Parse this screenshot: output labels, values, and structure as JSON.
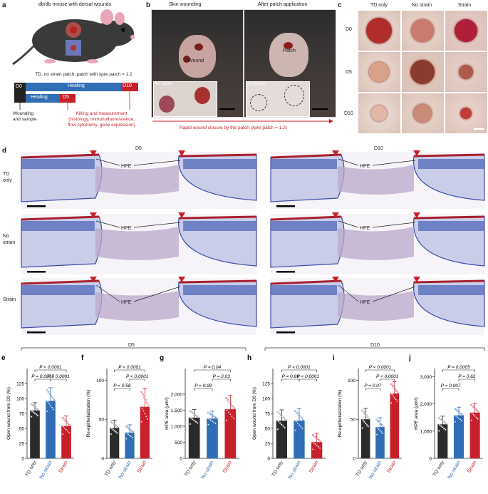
{
  "panel_letters": {
    "a": "a",
    "b": "b",
    "c": "c",
    "d": "d",
    "e": "e",
    "f": "f",
    "g": "g",
    "h": "h",
    "i": "i",
    "j": "j"
  },
  "panel_a": {
    "title": "db/db mouse with dorsal wounds",
    "subtitle": "TD, no strain patch, patch with λpre patch = 1.2",
    "d0": "D0",
    "healing1": "Healing",
    "healing2": "Healing",
    "d5": "D5",
    "d10": "D10",
    "wounding": "Wounding",
    "and_sample": "and sample",
    "killing": "Killing and measurement",
    "methods1": "(histology, immunofluorescence,",
    "methods2": "flow cytometry, gene expression)"
  },
  "panel_b": {
    "title_left": "Skin wounding",
    "title_right": "After patch application",
    "wound": "Wound",
    "patch": "Patch",
    "zoom_left": "4X zoom",
    "zoom_right": "4X zoom",
    "caption": "Rapid wound closure by the patch (λpre patch = 1.2)"
  },
  "panel_c": {
    "cols": [
      "TD only",
      "No strain",
      "Strain"
    ],
    "rows": [
      "D0",
      "D5",
      "D10"
    ]
  },
  "panel_d": {
    "d5": "D5",
    "d10": "D10",
    "row1a": "TD",
    "row1b": "only",
    "row2a": "No",
    "row2b": "strain",
    "row3": "Strain",
    "hpe": "HPE"
  },
  "group_labels": {
    "d5": "D5",
    "d10": "D10"
  },
  "chart_data": [
    {
      "id": "e",
      "type": "bar",
      "categories": [
        "TD only",
        "No strain",
        "Strain"
      ],
      "values": [
        80,
        96,
        54
      ],
      "errors": [
        13,
        22,
        17
      ],
      "ylabel": "Open wound from D0 (%)",
      "ylim": [
        0,
        150
      ],
      "yticks": [
        0,
        25,
        50,
        75,
        100,
        125
      ],
      "pvals": [
        {
          "text": "P < 0.0001",
          "from": 0,
          "to": 2,
          "level": 2
        },
        {
          "text": "P = 0.0015",
          "from": 0,
          "to": 1,
          "level": 1
        },
        {
          "text": "P < 0.0001",
          "from": 1,
          "to": 2,
          "level": 1
        }
      ]
    },
    {
      "id": "f",
      "type": "bar",
      "categories": [
        "TD only",
        "No strain",
        "Strain"
      ],
      "values": [
        39,
        33,
        66
      ],
      "errors": [
        10,
        10,
        24
      ],
      "ylabel": "Re-epithelialization (%)",
      "ylim": [
        0,
        115
      ],
      "yticks": [
        0,
        50,
        100
      ],
      "pvals": [
        {
          "text": "P < 0.0001",
          "from": 0,
          "to": 2,
          "level": 2
        },
        {
          "text": "P < 0.0001",
          "from": 1,
          "to": 2,
          "level": 1
        },
        {
          "text": "P = 0.58",
          "from": 0,
          "to": 1,
          "level": 0
        }
      ]
    },
    {
      "id": "g",
      "type": "bar",
      "categories": [
        "TD only",
        "No strain",
        "Strain"
      ],
      "values": [
        1270,
        1240,
        1530
      ],
      "errors": [
        250,
        230,
        430
      ],
      "ylabel": "HPE area (μm²)",
      "ylim": [
        0,
        2800
      ],
      "yticks": [
        0,
        500,
        1000,
        1500,
        2000
      ],
      "pvals": [
        {
          "text": "P = 0.04",
          "from": 0,
          "to": 2,
          "level": 2
        },
        {
          "text": "P = 0.03",
          "from": 1,
          "to": 2,
          "level": 1
        },
        {
          "text": "P = 0.99",
          "from": 0,
          "to": 1,
          "level": 0
        }
      ]
    },
    {
      "id": "h",
      "type": "bar",
      "categories": [
        "TD only",
        "No strain",
        "Strain"
      ],
      "values": [
        63,
        63,
        27
      ],
      "errors": [
        18,
        20,
        15
      ],
      "ylabel": "Open wound from D0 (%)",
      "ylim": [
        0,
        150
      ],
      "yticks": [
        0,
        25,
        50,
        75,
        100,
        125
      ],
      "pvals": [
        {
          "text": "P < 0.0001",
          "from": 0,
          "to": 2,
          "level": 2
        },
        {
          "text": "P = 0.99",
          "from": 0,
          "to": 1,
          "level": 1
        },
        {
          "text": "P < 0.0001",
          "from": 1,
          "to": 2,
          "level": 1
        }
      ]
    },
    {
      "id": "i",
      "type": "bar",
      "categories": [
        "TD only",
        "No strain",
        "Strain"
      ],
      "values": [
        50,
        40,
        83
      ],
      "errors": [
        14,
        12,
        15
      ],
      "ylabel": "Re-epithelialization (%)",
      "ylim": [
        0,
        115
      ],
      "yticks": [
        0,
        50,
        100
      ],
      "pvals": [
        {
          "text": "P < 0.0001",
          "from": 0,
          "to": 2,
          "level": 2
        },
        {
          "text": "P < 0.0001",
          "from": 1,
          "to": 2,
          "level": 1
        },
        {
          "text": "P = 0.07",
          "from": 0,
          "to": 1,
          "level": 0
        }
      ]
    },
    {
      "id": "j",
      "type": "bar",
      "categories": [
        "TD only",
        "No strain",
        "Strain"
      ],
      "values": [
        1250,
        1580,
        1680
      ],
      "errors": [
        300,
        300,
        350
      ],
      "ylabel": "HPE area (μm²)",
      "ylim": [
        0,
        3300
      ],
      "yticks": [
        0,
        1000,
        2000,
        3000
      ],
      "pvals": [
        {
          "text": "P = 0.0005",
          "from": 0,
          "to": 2,
          "level": 2
        },
        {
          "text": "P = 0.62",
          "from": 1,
          "to": 2,
          "level": 1
        },
        {
          "text": "P = 0.007",
          "from": 0,
          "to": 1,
          "level": 0
        }
      ]
    }
  ],
  "colors": {
    "td": "#2b2b2b",
    "nostrain": "#2f6db5",
    "strain": "#c8202a",
    "red": "#c8202a",
    "blue": "#2f6db5"
  }
}
